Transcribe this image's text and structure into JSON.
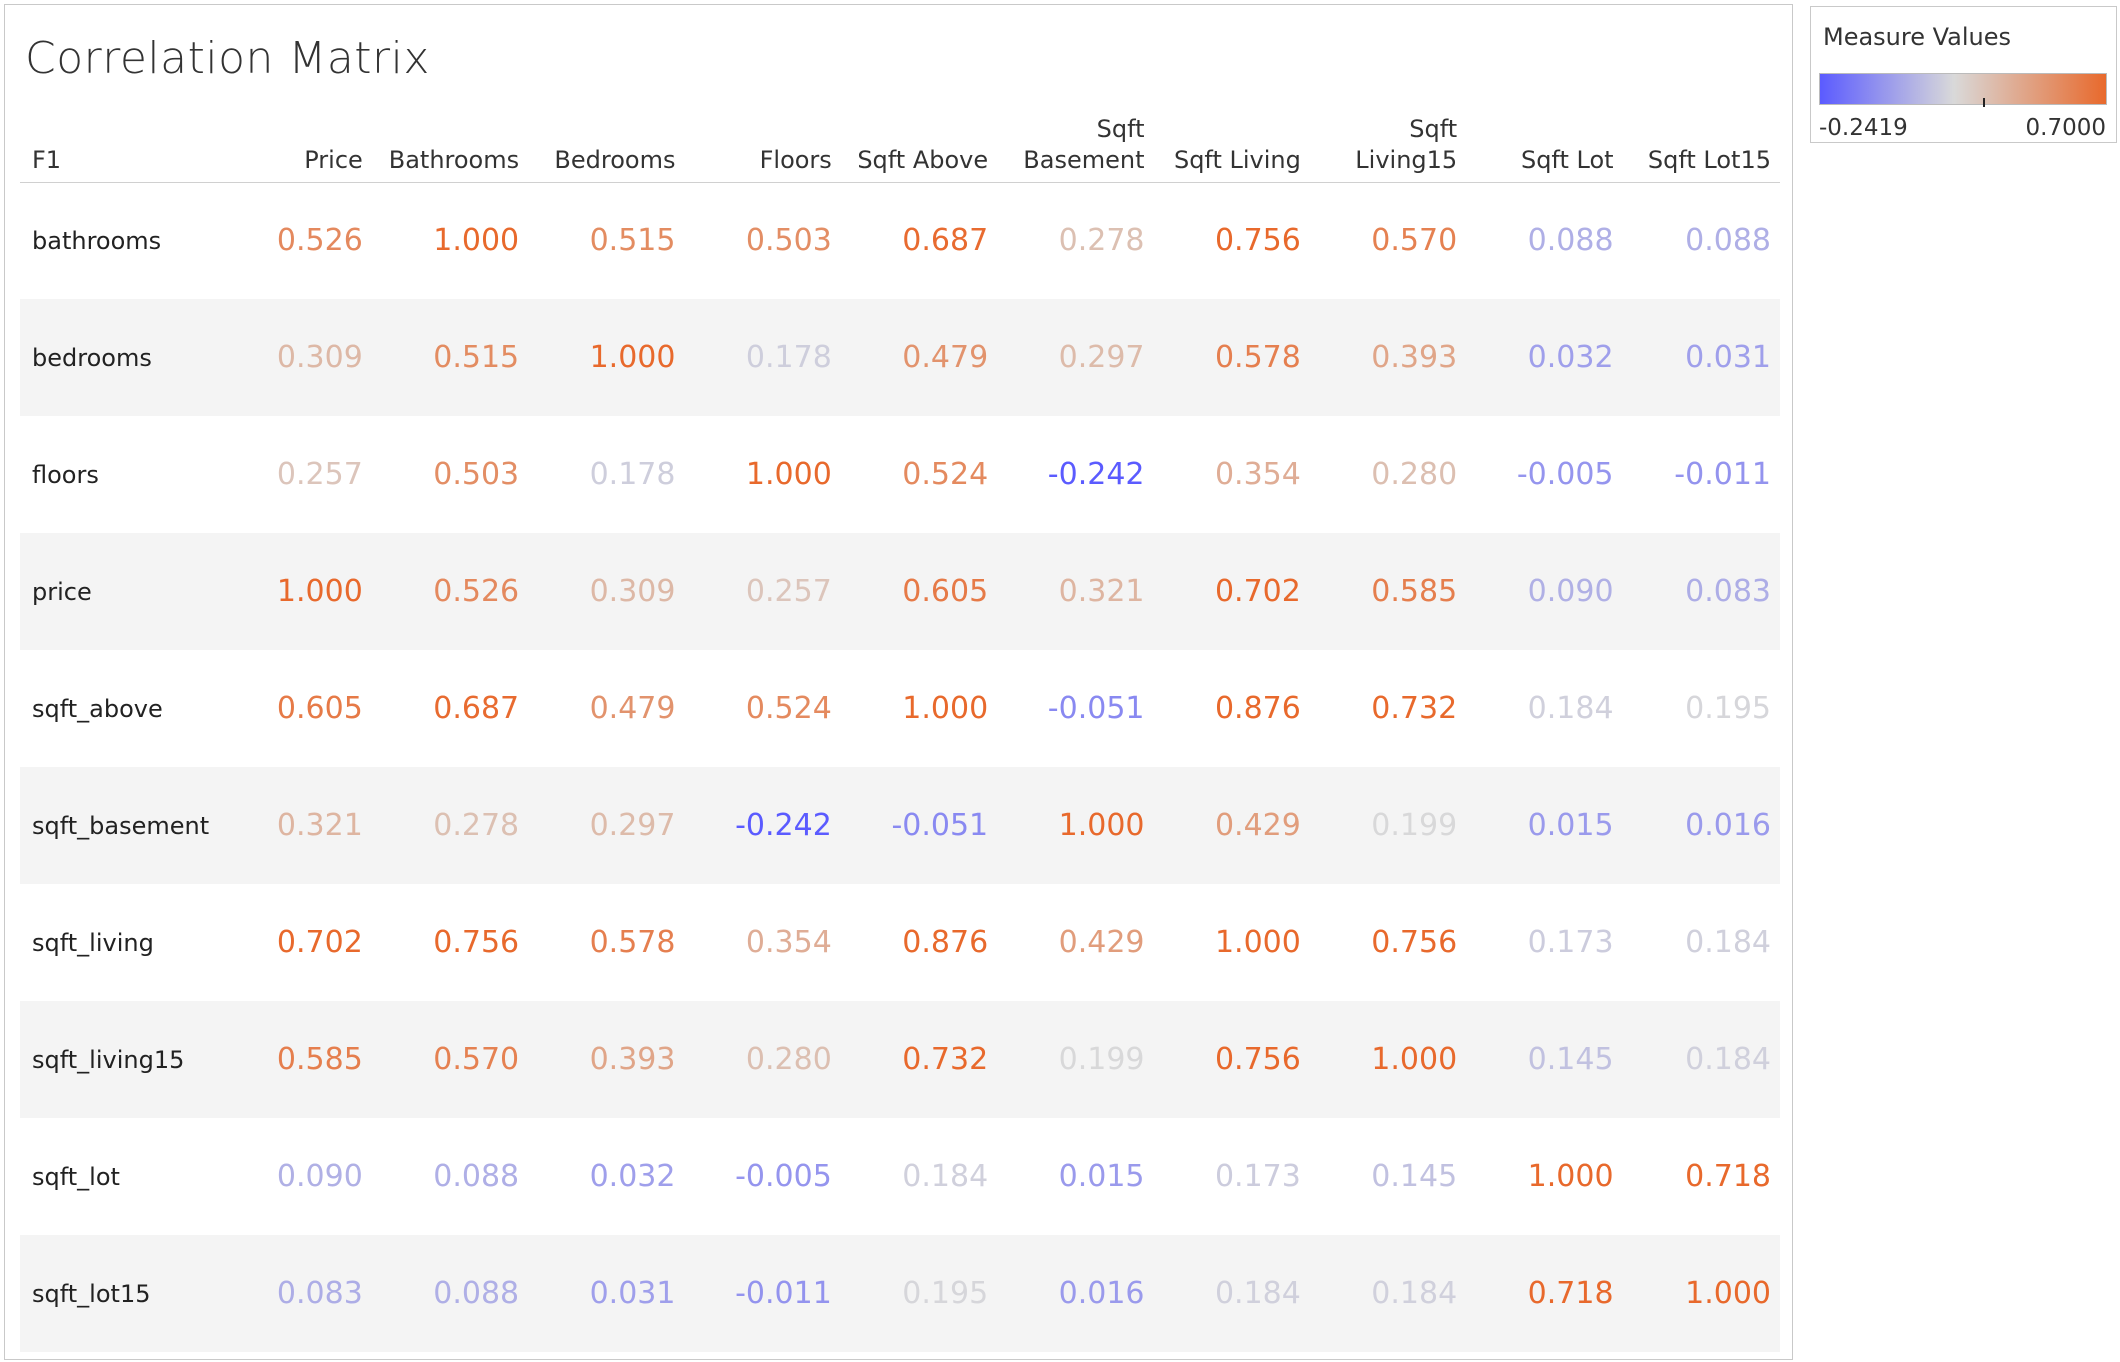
{
  "chart_data": {
    "type": "heatmap",
    "title": "Correlation Matrix",
    "row_header": "F1",
    "columns": [
      "Price",
      "Bathrooms",
      "Bedrooms",
      "Floors",
      "Sqft Above",
      "Sqft Basement",
      "Sqft Living",
      "Sqft Living15",
      "Sqft Lot",
      "Sqft Lot15"
    ],
    "rows": [
      "bathrooms",
      "bedrooms",
      "floors",
      "price",
      "sqft_above",
      "sqft_basement",
      "sqft_living",
      "sqft_living15",
      "sqft_lot",
      "sqft_lot15"
    ],
    "values": [
      [
        0.526,
        1.0,
        0.515,
        0.503,
        0.687,
        0.278,
        0.756,
        0.57,
        0.088,
        0.088
      ],
      [
        0.309,
        0.515,
        1.0,
        0.178,
        0.479,
        0.297,
        0.578,
        0.393,
        0.032,
        0.031
      ],
      [
        0.257,
        0.503,
        0.178,
        1.0,
        0.524,
        -0.242,
        0.354,
        0.28,
        -0.005,
        -0.011
      ],
      [
        1.0,
        0.526,
        0.309,
        0.257,
        0.605,
        0.321,
        0.702,
        0.585,
        0.09,
        0.083
      ],
      [
        0.605,
        0.687,
        0.479,
        0.524,
        1.0,
        -0.051,
        0.876,
        0.732,
        0.184,
        0.195
      ],
      [
        0.321,
        0.278,
        0.297,
        -0.242,
        -0.051,
        1.0,
        0.429,
        0.199,
        0.015,
        0.016
      ],
      [
        0.702,
        0.756,
        0.578,
        0.354,
        0.876,
        0.429,
        1.0,
        0.756,
        0.173,
        0.184
      ],
      [
        0.585,
        0.57,
        0.393,
        0.28,
        0.732,
        0.199,
        0.756,
        1.0,
        0.145,
        0.184
      ],
      [
        0.09,
        0.088,
        0.032,
        -0.005,
        0.184,
        0.015,
        0.173,
        0.145,
        1.0,
        0.718
      ],
      [
        0.083,
        0.088,
        0.031,
        -0.011,
        0.195,
        0.016,
        0.184,
        0.184,
        0.718,
        1.0
      ]
    ],
    "legend": {
      "title": "Measure Values",
      "min_label": "-0.2419",
      "max_label": "0.7000",
      "min": -0.2419,
      "max": 0.7,
      "center": 0.2,
      "color_low": "#5b5bff",
      "color_mid": "#d9d9d9",
      "color_high": "#e8692c"
    }
  }
}
